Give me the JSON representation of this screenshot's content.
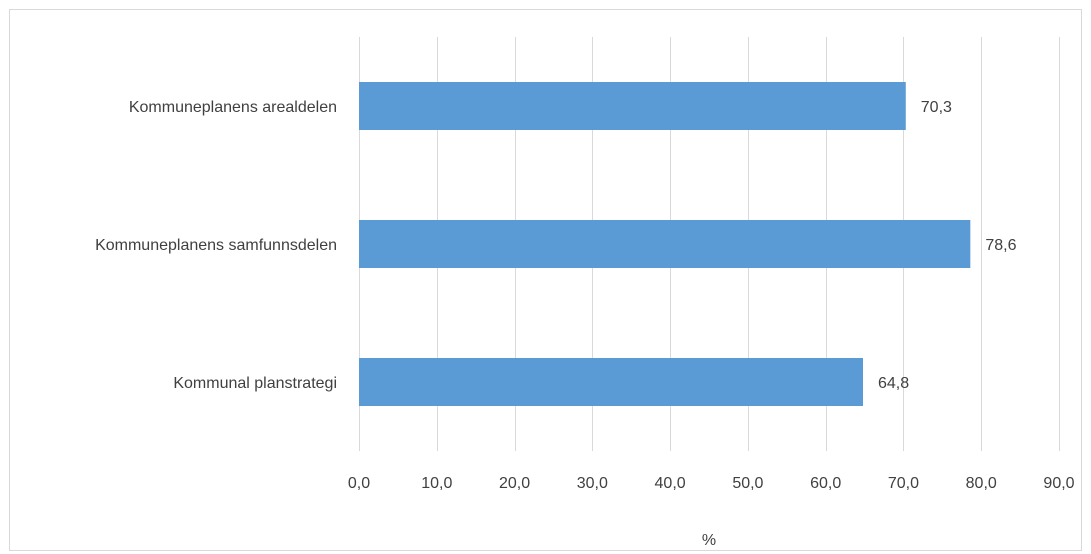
{
  "chart_data": {
    "type": "bar",
    "orientation": "horizontal",
    "categories": [
      "Kommuneplanens arealdelen",
      "Kommuneplanens samfunnsdelen",
      "Kommunal planstrategi"
    ],
    "values": [
      70.3,
      78.6,
      64.8
    ],
    "data_labels": [
      "70,3",
      "78,6",
      "64,8"
    ],
    "title": "",
    "xlabel": "%",
    "ylabel": "",
    "xlim": [
      0,
      90
    ],
    "x_ticks": [
      0,
      10,
      20,
      30,
      40,
      50,
      60,
      70,
      80,
      90
    ],
    "x_tick_labels": [
      "0,0",
      "10,0",
      "20,0",
      "30,0",
      "40,0",
      "50,0",
      "60,0",
      "70,0",
      "80,0",
      "90,0"
    ],
    "grid": true,
    "legend": "none",
    "bar_color": "#5b9bd5",
    "grid_color": "#d9d9d9",
    "text_color": "#404040"
  }
}
